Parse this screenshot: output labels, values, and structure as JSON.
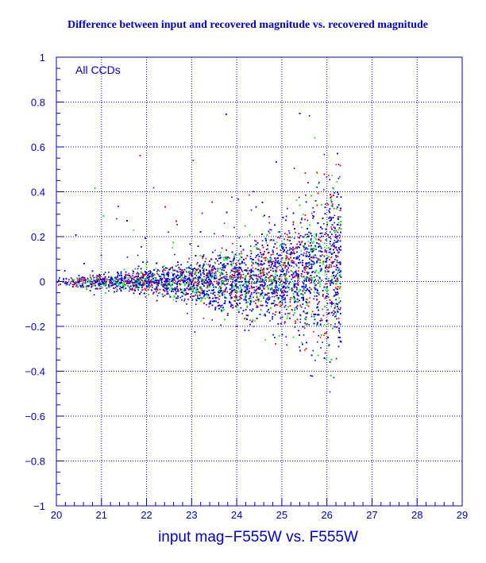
{
  "chart_data": {
    "type": "scatter",
    "title": "Difference between input and recovered magnitude vs. recovered magnitude",
    "xlabel": "input mag−F555W vs. F555W",
    "ylabel": "",
    "annotation": "All CCDs",
    "xlim": [
      20,
      29
    ],
    "ylim": [
      -1,
      1
    ],
    "x_ticks": [
      20,
      21,
      22,
      23,
      24,
      25,
      26,
      27,
      28,
      29
    ],
    "y_ticks": [
      -1,
      -0.8,
      -0.6,
      -0.4,
      -0.2,
      0,
      0.2,
      0.4,
      0.6,
      0.8,
      1
    ],
    "x_tick_labels": [
      "20",
      "21",
      "22",
      "23",
      "24",
      "25",
      "26",
      "27",
      "28",
      "29"
    ],
    "y_tick_labels": [
      "−1",
      "−0.8",
      "−0.6",
      "−0.4",
      "−0.2",
      "0",
      "0.2",
      "0.4",
      "0.6",
      "0.8",
      "1"
    ],
    "grid": true,
    "colors": {
      "axes": "#0000cc",
      "text": "#0000cc",
      "grid": "#0000cc",
      "frame": "#000000"
    },
    "series": [
      {
        "color": "#0000ff",
        "distribution": {
          "x_range": [
            20,
            26.35
          ],
          "cutoff": 26.3,
          "spread": [
            [
              20,
              0.012
            ],
            [
              21,
              0.018
            ],
            [
              22,
              0.028
            ],
            [
              23,
              0.045
            ],
            [
              24,
              0.07
            ],
            [
              25,
              0.11
            ],
            [
              25.5,
              0.14
            ],
            [
              26,
              0.18
            ],
            [
              26.3,
              0.2
            ]
          ],
          "offset": [
            [
              20,
              0
            ],
            [
              24,
              0
            ],
            [
              25,
              0.02
            ],
            [
              26,
              0.05
            ],
            [
              26.3,
              0.07
            ]
          ]
        }
      },
      {
        "color": "#ff0000"
      },
      {
        "color": "#00ee00"
      }
    ]
  }
}
